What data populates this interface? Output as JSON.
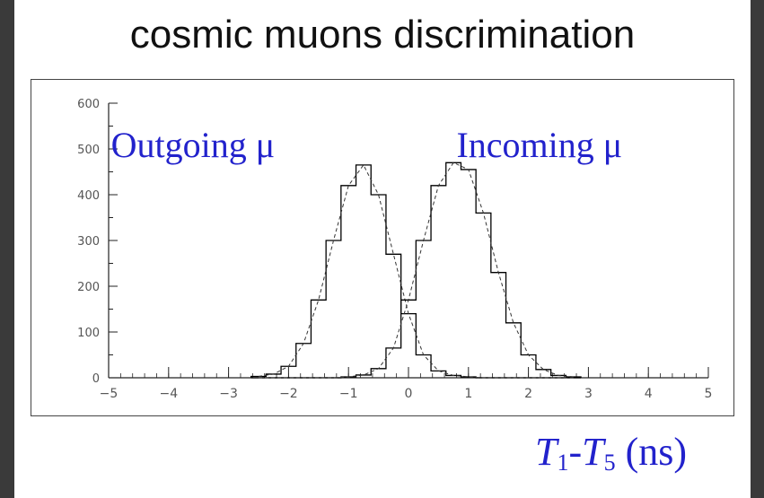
{
  "slide": {
    "title": "cosmic muons discrimination"
  },
  "chart_data": {
    "type": "line",
    "title": "",
    "xlabel": "T1-T5 (ns)",
    "xlabel_parts": {
      "v1": "T",
      "s1": "1",
      "dash": "-",
      "v2": "T",
      "s2": "5",
      "unit": " (ns)"
    },
    "ylabel": "",
    "xlim": [
      -5,
      5
    ],
    "ylim": [
      0,
      600
    ],
    "x_ticks": [
      "-5",
      "-4",
      "-3",
      "-2",
      "-1",
      "0",
      "1",
      "2",
      "3",
      "4",
      "5"
    ],
    "y_ticks": [
      "0",
      "100",
      "200",
      "300",
      "400",
      "500",
      "600"
    ],
    "annotations": [
      "Outgoing μ",
      "Incoming μ"
    ],
    "colors": {
      "histogram": "#000000",
      "annotation": "#2222cc",
      "axis": "#222222"
    },
    "x": [
      -2.5,
      -2.25,
      -2.0,
      -1.75,
      -1.5,
      -1.25,
      -1.0,
      -0.75,
      -0.5,
      -0.25,
      0.0,
      0.25,
      0.5,
      0.75,
      1.0,
      1.25,
      1.5,
      1.75,
      2.0,
      2.25,
      2.5,
      2.75
    ],
    "series": [
      {
        "name": "Outgoing μ",
        "values": [
          3,
          8,
          25,
          75,
          170,
          300,
          420,
          465,
          400,
          270,
          140,
          50,
          15,
          5,
          2,
          0,
          0,
          0,
          0,
          0,
          0,
          0
        ]
      },
      {
        "name": "Incoming μ",
        "values": [
          0,
          0,
          0,
          0,
          0,
          0,
          2,
          6,
          20,
          65,
          170,
          300,
          420,
          470,
          455,
          360,
          230,
          120,
          50,
          18,
          5,
          2
        ]
      }
    ]
  }
}
